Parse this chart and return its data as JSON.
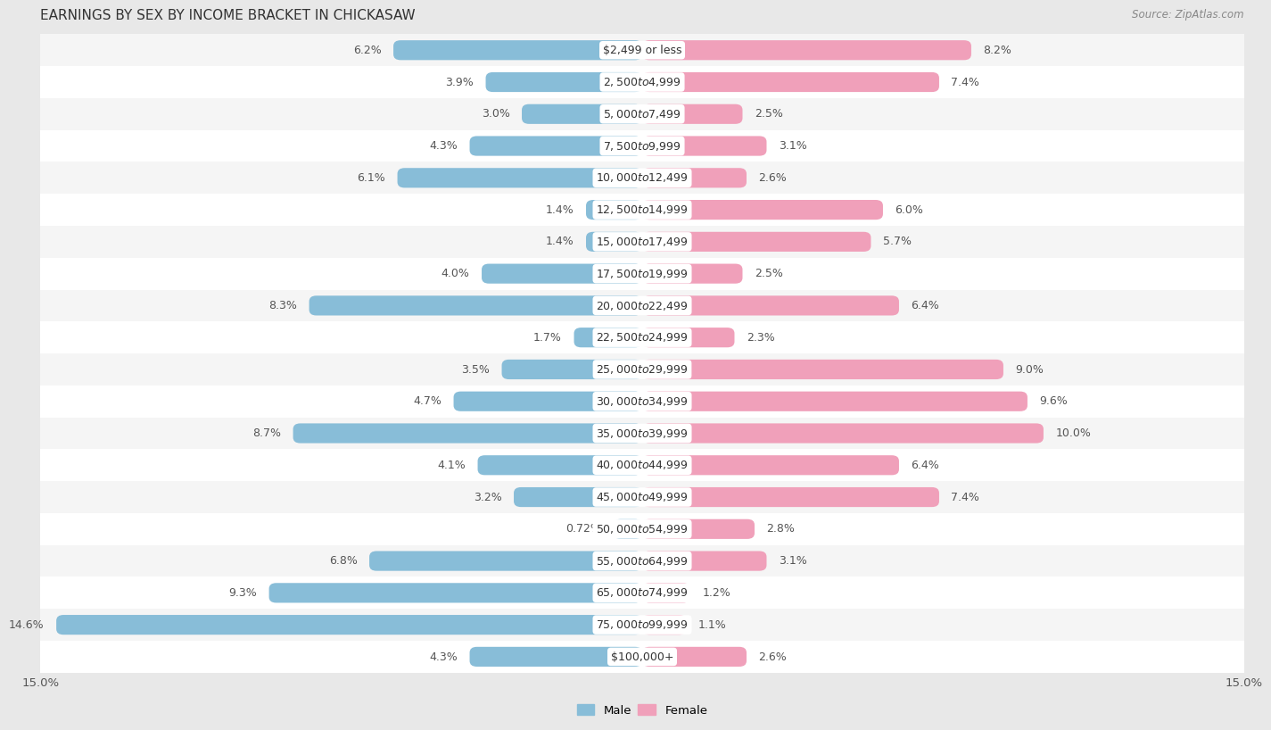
{
  "title": "EARNINGS BY SEX BY INCOME BRACKET IN CHICKASAW",
  "source": "Source: ZipAtlas.com",
  "categories": [
    "$2,499 or less",
    "$2,500 to $4,999",
    "$5,000 to $7,499",
    "$7,500 to $9,999",
    "$10,000 to $12,499",
    "$12,500 to $14,999",
    "$15,000 to $17,499",
    "$17,500 to $19,999",
    "$20,000 to $22,499",
    "$22,500 to $24,999",
    "$25,000 to $29,999",
    "$30,000 to $34,999",
    "$35,000 to $39,999",
    "$40,000 to $44,999",
    "$45,000 to $49,999",
    "$50,000 to $54,999",
    "$55,000 to $64,999",
    "$65,000 to $74,999",
    "$75,000 to $99,999",
    "$100,000+"
  ],
  "male_values": [
    6.2,
    3.9,
    3.0,
    4.3,
    6.1,
    1.4,
    1.4,
    4.0,
    8.3,
    1.7,
    3.5,
    4.7,
    8.7,
    4.1,
    3.2,
    0.72,
    6.8,
    9.3,
    14.6,
    4.3
  ],
  "female_values": [
    8.2,
    7.4,
    2.5,
    3.1,
    2.6,
    6.0,
    5.7,
    2.5,
    6.4,
    2.3,
    9.0,
    9.6,
    10.0,
    6.4,
    7.4,
    2.8,
    3.1,
    1.2,
    1.1,
    2.6
  ],
  "male_color": "#88bdd8",
  "female_color": "#f0a0ba",
  "background_color": "#e8e8e8",
  "row_color_odd": "#f5f5f5",
  "row_color_even": "#ffffff",
  "axis_limit": 15.0,
  "label_fontsize": 9.0,
  "title_fontsize": 11,
  "category_fontsize": 9.0,
  "tick_fontsize": 9.5,
  "bar_height": 0.62
}
